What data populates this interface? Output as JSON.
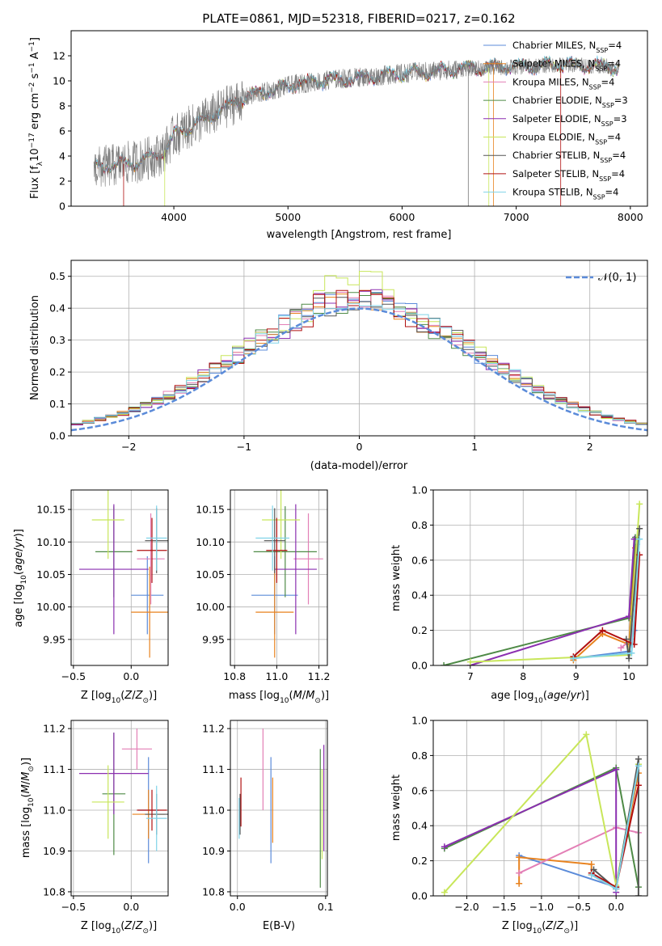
{
  "colors": {
    "chabrier_miles": "#5b8bd9",
    "salpeter_miles": "#e8821e",
    "kroupa_miles": "#e37fb6",
    "chabrier_elodie": "#4e8a46",
    "salpeter_elodie": "#8b2fb0",
    "kroupa_elodie": "#c8e65a",
    "chabrier_stelib": "#555555",
    "salpeter_stelib": "#b01010",
    "kroupa_stelib": "#7fd3e8",
    "data": "#7a7a7a",
    "normal": "#5b8bd9"
  },
  "chart_data": [
    {
      "type": "line",
      "title": "PLATE=0861, MJD=52318, FIBERID=0217, z=0.162",
      "xlabel": "wavelength [Angstrom, rest frame]",
      "ylabel": "Flux [f_λ 10^-17 erg cm^-2 s^-1 A^-1]",
      "xlim": [
        3100,
        8150
      ],
      "ylim": [
        0,
        14
      ],
      "xticks": [
        "4000",
        "5000",
        "6000",
        "7000",
        "8000"
      ],
      "yticks": [
        "0",
        "2",
        "4",
        "6",
        "8",
        "10",
        "12"
      ],
      "legend": [
        {
          "base": "Chabrier MILES, N",
          "sub": "SSP",
          "tail": "=4"
        },
        {
          "base": "Salpeter MILES, N",
          "sub": "SSP",
          "tail": "=4"
        },
        {
          "base": "Kroupa MILES, N",
          "sub": "SSP",
          "tail": "=4"
        },
        {
          "base": "Chabrier ELODIE, N",
          "sub": "SSP",
          "tail": "=3"
        },
        {
          "base": "Salpeter ELODIE, N",
          "sub": "SSP",
          "tail": "=3"
        },
        {
          "base": "Kroupa ELODIE, N",
          "sub": "SSP",
          "tail": "=4"
        },
        {
          "base": "Chabrier STELIB, N",
          "sub": "SSP",
          "tail": "=4"
        },
        {
          "base": "Salpeter STELIB, N",
          "sub": "SSP",
          "tail": "=4"
        },
        {
          "base": "Kroupa STELIB, N",
          "sub": "SSP",
          "tail": "=4"
        }
      ],
      "continuum": [
        [
          3300,
          3.0
        ],
        [
          3500,
          3.3
        ],
        [
          3700,
          3.6
        ],
        [
          3900,
          4.2
        ],
        [
          4000,
          5.6
        ],
        [
          4200,
          6.6
        ],
        [
          4400,
          7.6
        ],
        [
          4600,
          8.6
        ],
        [
          4800,
          9.1
        ],
        [
          5000,
          9.6
        ],
        [
          5200,
          9.9
        ],
        [
          5500,
          10.2
        ],
        [
          5800,
          10.4
        ],
        [
          6000,
          10.6
        ],
        [
          6300,
          10.8
        ],
        [
          6600,
          11.0
        ],
        [
          7000,
          11.1
        ],
        [
          7400,
          11.3
        ],
        [
          7800,
          11.2
        ],
        [
          7900,
          11.0
        ]
      ]
    },
    {
      "type": "histogram",
      "xlabel": "(data-model)/error",
      "ylabel": "Normed distribution",
      "xlim": [
        -2.5,
        2.5
      ],
      "ylim": [
        0,
        0.55
      ],
      "xticks": [
        "−2",
        "−1",
        "0",
        "1",
        "2"
      ],
      "yticks": [
        "0.0",
        "0.1",
        "0.2",
        "0.3",
        "0.4",
        "0.5"
      ],
      "bin_width": 0.1,
      "legend_label": "𝒩(0, 1)",
      "peaks": {
        "chabrier_miles": 0.43,
        "salpeter_miles": 0.44,
        "kroupa_miles": 0.42,
        "chabrier_elodie": 0.45,
        "salpeter_elodie": 0.47,
        "kroupa_elodie": 0.52,
        "chabrier_stelib": 0.44,
        "salpeter_stelib": 0.46,
        "kroupa_stelib": 0.41
      }
    },
    {
      "type": "errorbar",
      "xlabel": "Z [log10(Z/Z⊙)]",
      "ylabel": "age [log10(age/yr)]",
      "xlim": [
        -0.52,
        0.32
      ],
      "ylim": [
        9.91,
        10.18
      ],
      "xticks": [
        "−0.5",
        "0.0"
      ],
      "yticks": [
        "9.95",
        "10.00",
        "10.05",
        "10.10",
        "10.15"
      ],
      "points": [
        {
          "model": "chabrier_miles",
          "x": 0.14,
          "xerr": 0.14,
          "y": 10.018,
          "yerr": 0.06
        },
        {
          "model": "salpeter_miles",
          "x": 0.16,
          "xerr": 0.16,
          "y": 9.992,
          "yerr": 0.07
        },
        {
          "model": "kroupa_miles",
          "x": 0.17,
          "xerr": 0.12,
          "y": 10.074,
          "yerr": 0.07
        },
        {
          "model": "chabrier_elodie",
          "x": -0.15,
          "xerr": 0.16,
          "y": 10.085,
          "yerr": 0.07
        },
        {
          "model": "salpeter_elodie",
          "x": -0.15,
          "xerr": 0.3,
          "y": 10.058,
          "yerr": 0.1
        },
        {
          "model": "kroupa_elodie",
          "x": -0.2,
          "xerr": 0.14,
          "y": 10.134,
          "yerr": 0.06
        },
        {
          "model": "chabrier_stelib",
          "x": 0.22,
          "xerr": 0.1,
          "y": 10.102,
          "yerr": 0.05
        },
        {
          "model": "salpeter_stelib",
          "x": 0.18,
          "xerr": 0.13,
          "y": 10.087,
          "yerr": 0.05
        },
        {
          "model": "kroupa_stelib",
          "x": 0.22,
          "xerr": 0.09,
          "y": 10.106,
          "yerr": 0.05
        }
      ]
    },
    {
      "type": "errorbar",
      "xlabel": "mass [log10(M/M⊙)]",
      "ylabel": "",
      "xlim": [
        10.78,
        11.24
      ],
      "ylim": [
        9.91,
        10.18
      ],
      "xticks": [
        "10.8",
        "11.0",
        "11.2"
      ],
      "yticks": [
        "9.95",
        "10.00",
        "10.05",
        "10.10",
        "10.15"
      ],
      "points": [
        {
          "model": "chabrier_miles",
          "x": 10.99,
          "xerr": 0.11,
          "y": 10.018,
          "yerr": 0.06
        },
        {
          "model": "salpeter_miles",
          "x": 10.99,
          "xerr": 0.09,
          "y": 9.992,
          "yerr": 0.07
        },
        {
          "model": "kroupa_miles",
          "x": 11.15,
          "xerr": 0.07,
          "y": 10.074,
          "yerr": 0.07
        },
        {
          "model": "chabrier_elodie",
          "x": 11.04,
          "xerr": 0.15,
          "y": 10.085,
          "yerr": 0.07
        },
        {
          "model": "salpeter_elodie",
          "x": 11.09,
          "xerr": 0.1,
          "y": 10.058,
          "yerr": 0.1
        },
        {
          "model": "kroupa_elodie",
          "x": 11.02,
          "xerr": 0.09,
          "y": 10.134,
          "yerr": 0.06
        },
        {
          "model": "chabrier_stelib",
          "x": 10.99,
          "xerr": 0.05,
          "y": 10.102,
          "yerr": 0.05
        },
        {
          "model": "salpeter_stelib",
          "x": 11.0,
          "xerr": 0.05,
          "y": 10.087,
          "yerr": 0.05
        },
        {
          "model": "kroupa_stelib",
          "x": 10.98,
          "xerr": 0.08,
          "y": 10.106,
          "yerr": 0.05
        }
      ]
    },
    {
      "type": "line",
      "xlabel": "age [log10(age/yr)]",
      "ylabel": "mass weight",
      "xlim": [
        6.3,
        10.35
      ],
      "ylim": [
        0,
        1
      ],
      "xticks": [
        "7",
        "8",
        "9",
        "10"
      ],
      "yticks": [
        "0.0",
        "0.2",
        "0.4",
        "0.6",
        "0.8",
        "1.0"
      ],
      "series": [
        {
          "model": "chabrier_miles",
          "x": [
            8.95,
            10.0,
            10.1,
            10.15
          ],
          "y": [
            0.04,
            0.08,
            0.2,
            0.69
          ]
        },
        {
          "model": "salpeter_miles",
          "x": [
            8.95,
            9.5,
            10.0,
            10.12
          ],
          "y": [
            0.03,
            0.18,
            0.12,
            0.67
          ]
        },
        {
          "model": "kroupa_miles",
          "x": [
            9.85,
            10.05,
            10.15
          ],
          "y": [
            0.1,
            0.15,
            0.38
          ]
        },
        {
          "model": "chabrier_elodie",
          "x": [
            6.5,
            10.0,
            10.12
          ],
          "y": [
            0.0,
            0.27,
            0.73
          ]
        },
        {
          "model": "salpeter_elodie",
          "x": [
            7.0,
            10.0,
            10.1
          ],
          "y": [
            0.0,
            0.28,
            0.72
          ]
        },
        {
          "model": "kroupa_elodie",
          "x": [
            7.0,
            10.0,
            10.2
          ],
          "y": [
            0.02,
            0.06,
            0.92
          ]
        },
        {
          "model": "chabrier_stelib",
          "x": [
            9.95,
            10.0,
            10.2
          ],
          "y": [
            0.15,
            0.04,
            0.78
          ]
        },
        {
          "model": "salpeter_stelib",
          "x": [
            8.95,
            9.5,
            10.1,
            10.2
          ],
          "y": [
            0.05,
            0.2,
            0.12,
            0.63
          ]
        },
        {
          "model": "kroupa_stelib",
          "x": [
            8.95,
            10.05,
            10.2
          ],
          "y": [
            0.04,
            0.07,
            0.72
          ]
        }
      ]
    },
    {
      "type": "errorbar",
      "xlabel": "Z [log10(Z/Z⊙)]",
      "ylabel": "mass [log10(M/M⊙)]",
      "xlim": [
        -0.52,
        0.32
      ],
      "ylim": [
        10.79,
        11.22
      ],
      "xticks": [
        "−0.5",
        "0.0"
      ],
      "yticks": [
        "10.8",
        "10.9",
        "11.0",
        "11.1",
        "11.2"
      ],
      "points": [
        {
          "model": "chabrier_miles",
          "x": 0.15,
          "xerr": 0.09,
          "y": 11.0,
          "yerr": 0.13
        },
        {
          "model": "salpeter_miles",
          "x": 0.15,
          "xerr": 0.14,
          "y": 10.99,
          "yerr": 0.06
        },
        {
          "model": "kroupa_miles",
          "x": 0.05,
          "xerr": 0.13,
          "y": 11.15,
          "yerr": 0.05
        },
        {
          "model": "chabrier_elodie",
          "x": -0.15,
          "xerr": 0.1,
          "y": 11.04,
          "yerr": 0.15
        },
        {
          "model": "salpeter_elodie",
          "x": -0.15,
          "xerr": 0.3,
          "y": 11.09,
          "yerr": 0.1
        },
        {
          "model": "kroupa_elodie",
          "x": -0.2,
          "xerr": 0.14,
          "y": 11.02,
          "yerr": 0.09
        },
        {
          "model": "chabrier_stelib",
          "x": 0.22,
          "xerr": 0.1,
          "y": 10.99,
          "yerr": 0.05
        },
        {
          "model": "salpeter_stelib",
          "x": 0.18,
          "xerr": 0.13,
          "y": 11.0,
          "yerr": 0.05
        },
        {
          "model": "kroupa_stelib",
          "x": 0.22,
          "xerr": 0.09,
          "y": 10.98,
          "yerr": 0.08
        }
      ]
    },
    {
      "type": "errorbar",
      "xlabel": "E(B-V)",
      "ylabel": "",
      "xlim": [
        -0.008,
        0.102
      ],
      "ylim": [
        10.79,
        11.22
      ],
      "xticks": [
        "0.0",
        "0.1"
      ],
      "yticks": [
        "10.8",
        "10.9",
        "11.0",
        "11.1",
        "11.2"
      ],
      "points": [
        {
          "model": "chabrier_miles",
          "x": 0.038,
          "xerr": 0,
          "y": 11.0,
          "yerr": 0.13
        },
        {
          "model": "salpeter_miles",
          "x": 0.04,
          "xerr": 0,
          "y": 11.0,
          "yerr": 0.08
        },
        {
          "model": "kroupa_miles",
          "x": 0.029,
          "xerr": 0,
          "y": 11.1,
          "yerr": 0.1
        },
        {
          "model": "chabrier_elodie",
          "x": 0.094,
          "xerr": 0,
          "y": 10.98,
          "yerr": 0.17
        },
        {
          "model": "salpeter_elodie",
          "x": 0.098,
          "xerr": 0,
          "y": 11.03,
          "yerr": 0.13
        },
        {
          "model": "kroupa_elodie",
          "x": 0.096,
          "xerr": 0,
          "y": 10.99,
          "yerr": 0.11
        },
        {
          "model": "chabrier_stelib",
          "x": 0.003,
          "xerr": 0,
          "y": 10.99,
          "yerr": 0.05
        },
        {
          "model": "salpeter_stelib",
          "x": 0.004,
          "xerr": 0,
          "y": 11.02,
          "yerr": 0.06
        },
        {
          "model": "kroupa_stelib",
          "x": 0.002,
          "xerr": 0,
          "y": 10.98,
          "yerr": 0.05
        }
      ]
    },
    {
      "type": "line",
      "xlabel": "Z [log10(Z/Z⊙)]",
      "ylabel": "mass weight",
      "xlim": [
        -2.45,
        0.42
      ],
      "ylim": [
        0,
        1
      ],
      "xticks": [
        "−2.0",
        "−1.5",
        "−1.0",
        "−0.5",
        "0.0"
      ],
      "yticks": [
        "0.0",
        "0.2",
        "0.4",
        "0.6",
        "0.8",
        "1.0"
      ],
      "series": [
        {
          "model": "chabrier_miles",
          "x": [
            -1.3,
            0.0,
            0.3
          ],
          "y": [
            0.23,
            0.05,
            0.75
          ]
        },
        {
          "model": "salpeter_miles",
          "x": [
            -1.3,
            -1.3,
            -0.33,
            -0.33,
            0.0,
            0.3
          ],
          "y": [
            0.07,
            0.22,
            0.18,
            0.12,
            0.04,
            0.7
          ]
        },
        {
          "model": "kroupa_miles",
          "x": [
            -1.3,
            0.0,
            0.3
          ],
          "y": [
            0.13,
            0.39,
            0.36
          ]
        },
        {
          "model": "chabrier_elodie",
          "x": [
            -2.3,
            0.0,
            0.3
          ],
          "y": [
            0.27,
            0.73,
            0.05
          ]
        },
        {
          "model": "salpeter_elodie",
          "x": [
            -2.3,
            0.0,
            0.0
          ],
          "y": [
            0.28,
            0.72,
            0.02
          ]
        },
        {
          "model": "kroupa_elodie",
          "x": [
            -2.3,
            -0.4,
            0.0,
            0.3
          ],
          "y": [
            0.02,
            0.92,
            0.06,
            0.75
          ]
        },
        {
          "model": "chabrier_stelib",
          "x": [
            -0.3,
            0.0,
            0.3,
            0.3
          ],
          "y": [
            0.15,
            0.04,
            0.78,
            0.0
          ]
        },
        {
          "model": "salpeter_stelib",
          "x": [
            -0.33,
            0.0,
            0.3
          ],
          "y": [
            0.13,
            0.05,
            0.63
          ]
        },
        {
          "model": "kroupa_stelib",
          "x": [
            -0.33,
            0.0,
            0.3
          ],
          "y": [
            0.12,
            0.04,
            0.74
          ]
        }
      ]
    }
  ]
}
